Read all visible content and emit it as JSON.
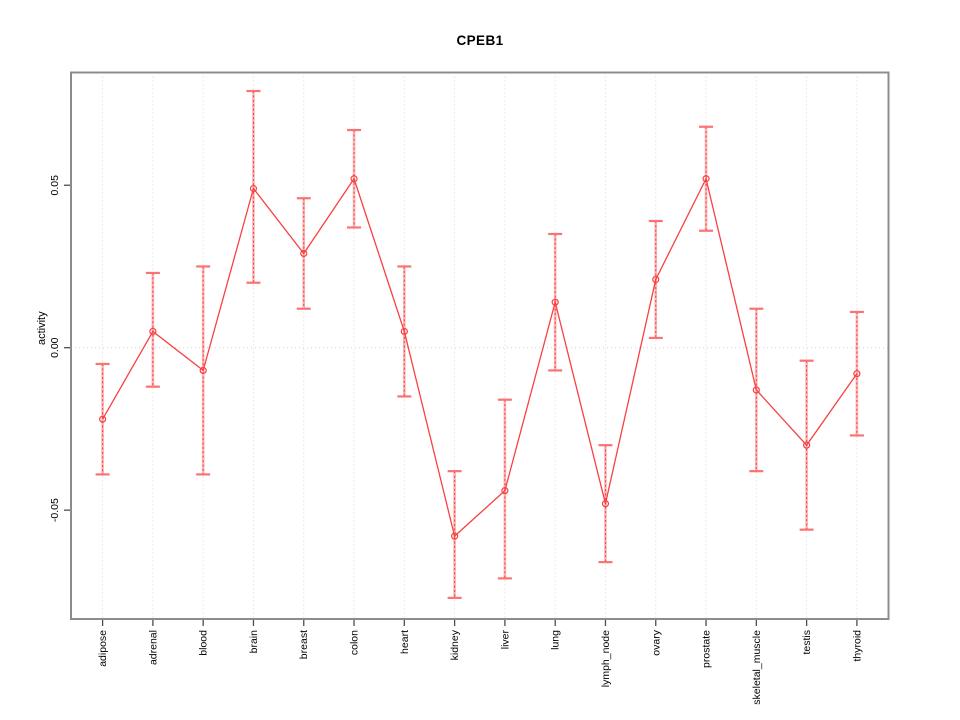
{
  "title": "CPEB1",
  "colors": {
    "series_red": "#f94040",
    "errorbar_pale": "rgba(250,110,110,0.50)",
    "errorbar_dash": "#fb3b3b",
    "errorbar_cap": "#fa7272",
    "frame_gray": "#8c8c8c",
    "tick_gray": "#4d4d4d",
    "grid_gray": "#d8d8d8",
    "zero_line_gray": "#d0d0d0",
    "text_black": "#000000"
  },
  "chart_data": {
    "type": "line",
    "title": "CPEB1",
    "xlabel": "",
    "ylabel": "activity",
    "legend": "none",
    "grid": "vertical dotted gridline at each category; horizontal dotted line at y=0",
    "point_style": "open-circle",
    "error_bars": true,
    "categories": [
      "adipose",
      "adrenal",
      "blood",
      "brain",
      "breast",
      "colon",
      "heart",
      "kidney",
      "liver",
      "lung",
      "lymph_node",
      "ovary",
      "prostate",
      "skeletal_muscle",
      "testis",
      "thyroid"
    ],
    "series": [
      {
        "name": "activity",
        "values": [
          -0.022,
          0.005,
          -0.007,
          0.049,
          0.029,
          0.052,
          0.005,
          -0.058,
          -0.044,
          0.014,
          -0.048,
          0.021,
          0.052,
          -0.013,
          -0.03,
          -0.008
        ],
        "error_low": [
          -0.039,
          -0.012,
          -0.039,
          0.02,
          0.012,
          0.037,
          -0.015,
          -0.077,
          -0.071,
          -0.007,
          -0.066,
          0.003,
          0.036,
          -0.038,
          -0.056,
          -0.027
        ],
        "error_high": [
          -0.005,
          0.023,
          0.025,
          0.079,
          0.046,
          0.067,
          0.025,
          -0.038,
          -0.016,
          0.035,
          -0.03,
          0.039,
          0.068,
          0.012,
          -0.004,
          0.011
        ]
      }
    ],
    "yticks": [
      -0.05,
      0,
      0.05
    ],
    "ytick_labels": [
      "-0.05",
      "0.00",
      "0.05"
    ],
    "ylim": [
      -0.0835,
      0.0847
    ]
  }
}
